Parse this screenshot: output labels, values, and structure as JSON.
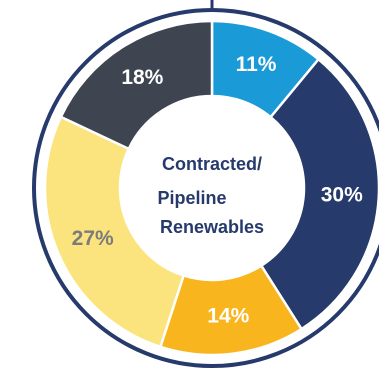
{
  "chart_data": {
    "type": "pie",
    "variant": "donut",
    "center_label": [
      "Contracted/",
      "Pipeline",
      "Renewables"
    ],
    "slices": [
      {
        "value": 11,
        "label": "11%",
        "color": "#1a9ad6",
        "label_color": "#ffffff"
      },
      {
        "value": 30,
        "label": "30%",
        "color": "#263a6c",
        "label_color": "#ffffff"
      },
      {
        "value": 14,
        "label": "14%",
        "color": "#f8b51d",
        "label_color": "#ffffff"
      },
      {
        "value": 27,
        "label": "27%",
        "color": "#fbe47e",
        "label_color": "#7b7b7b"
      },
      {
        "value": 18,
        "label": "18%",
        "color": "#3e4450",
        "label_color": "#ffffff"
      }
    ]
  },
  "colors": {
    "outer_ring": "#263a6c",
    "center_text": "#263a6c"
  }
}
